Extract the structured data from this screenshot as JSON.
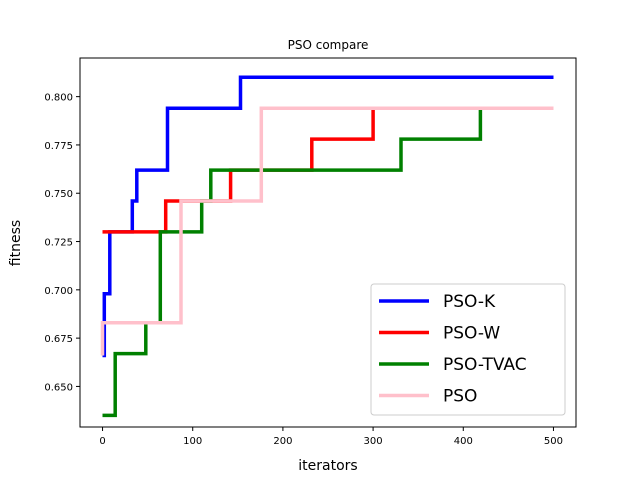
{
  "chart_data": {
    "type": "line",
    "title": "PSO compare",
    "xlabel": "iterators",
    "ylabel": "fitness",
    "xlim": [
      -25,
      525
    ],
    "ylim": [
      0.629,
      0.82
    ],
    "xticks": [
      0,
      100,
      200,
      300,
      400,
      500
    ],
    "xtick_labels": [
      "0",
      "100",
      "200",
      "300",
      "400",
      "500"
    ],
    "yticks": [
      0.65,
      0.675,
      0.7,
      0.725,
      0.75,
      0.775,
      0.8
    ],
    "ytick_labels": [
      "0.650",
      "0.675",
      "0.700",
      "0.725",
      "0.750",
      "0.775",
      "0.800"
    ],
    "grid": false,
    "legend_position": "bottom-right",
    "series": [
      {
        "name": "PSO-K",
        "color": "#0000ff",
        "x": [
          0,
          2,
          2,
          8,
          8,
          33,
          33,
          38,
          38,
          72,
          72,
          153,
          153,
          500
        ],
        "y": [
          0.666,
          0.666,
          0.698,
          0.698,
          0.73,
          0.73,
          0.746,
          0.746,
          0.762,
          0.762,
          0.794,
          0.794,
          0.81,
          0.81
        ]
      },
      {
        "name": "PSO-W",
        "color": "#ff0000",
        "x": [
          0,
          70,
          70,
          142,
          142,
          232,
          232,
          300,
          300,
          500
        ],
        "y": [
          0.73,
          0.73,
          0.746,
          0.746,
          0.762,
          0.762,
          0.778,
          0.778,
          0.794,
          0.794
        ]
      },
      {
        "name": "PSO-TVAC",
        "color": "#008000",
        "x": [
          0,
          14,
          14,
          48,
          48,
          64,
          64,
          110,
          110,
          120,
          120,
          331,
          331,
          419,
          419,
          500
        ],
        "y": [
          0.635,
          0.635,
          0.667,
          0.667,
          0.683,
          0.683,
          0.73,
          0.73,
          0.746,
          0.746,
          0.762,
          0.762,
          0.778,
          0.778,
          0.794,
          0.794
        ]
      },
      {
        "name": "PSO",
        "color": "#ffc0cb",
        "x": [
          0,
          0,
          0,
          87,
          87,
          176,
          176,
          500
        ],
        "y": [
          0.666,
          0.666,
          0.683,
          0.683,
          0.746,
          0.746,
          0.794,
          0.794
        ]
      }
    ]
  }
}
